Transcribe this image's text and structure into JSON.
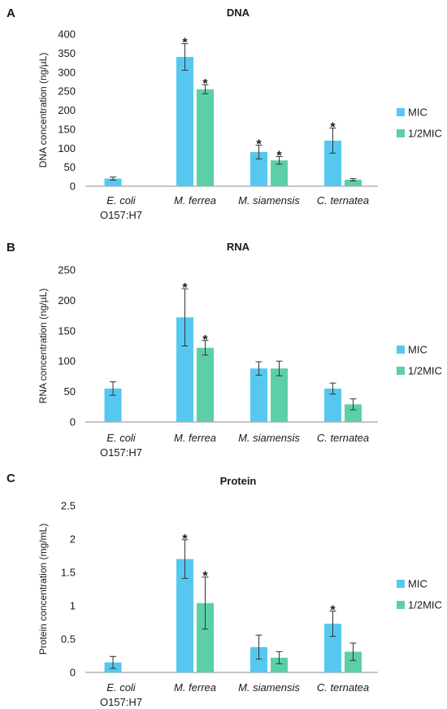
{
  "colors": {
    "mic": "#56c8f0",
    "half_mic": "#5ccfa8",
    "axis": "#8c8c8c",
    "error": "#333333",
    "text": "#1a1a1a"
  },
  "chart_data": [
    {
      "panel": "A",
      "type": "bar",
      "title": "DNA",
      "ylabel": "DNA concentration (ng/µL)",
      "xlabel": "",
      "ylim": [
        0,
        400
      ],
      "yticks": [
        "0",
        "50",
        "100",
        "150",
        "200",
        "250",
        "300",
        "350",
        "400"
      ],
      "ytick_values": [
        0,
        50,
        100,
        150,
        200,
        250,
        300,
        350,
        400
      ],
      "categories": [
        {
          "name": "E. coli",
          "sub": "O157:H7"
        },
        {
          "name": "M. ferrea",
          "sub": ""
        },
        {
          "name": "M. siamensis",
          "sub": ""
        },
        {
          "name": "C. ternatea",
          "sub": ""
        }
      ],
      "series": [
        {
          "name": "MIC",
          "values": [
            20,
            340,
            90,
            120
          ],
          "errors": [
            4,
            35,
            18,
            33
          ],
          "significant": [
            false,
            true,
            true,
            true
          ]
        },
        {
          "name": "1/2MIC",
          "values": [
            null,
            255,
            68,
            17
          ],
          "errors": [
            null,
            12,
            10,
            3
          ],
          "significant": [
            false,
            true,
            true,
            false
          ]
        }
      ],
      "significance_marker": "*",
      "legend_position": "right"
    },
    {
      "panel": "B",
      "type": "bar",
      "title": "RNA",
      "ylabel": "RNA concentration (ng/µL)",
      "xlabel": "",
      "ylim": [
        0,
        250
      ],
      "yticks": [
        "0",
        "50",
        "100",
        "150",
        "200",
        "250"
      ],
      "ytick_values": [
        0,
        50,
        100,
        150,
        200,
        250
      ],
      "categories": [
        {
          "name": "E. coli",
          "sub": "O157:H7"
        },
        {
          "name": "M. ferrea",
          "sub": ""
        },
        {
          "name": "M. siamensis",
          "sub": ""
        },
        {
          "name": "C. ternatea",
          "sub": ""
        }
      ],
      "series": [
        {
          "name": "MIC",
          "values": [
            55,
            172,
            88,
            55
          ],
          "errors": [
            11,
            47,
            11,
            9
          ],
          "significant": [
            false,
            true,
            false,
            false
          ]
        },
        {
          "name": "1/2MIC",
          "values": [
            null,
            122,
            88,
            29
          ],
          "errors": [
            null,
            12,
            12,
            9
          ],
          "significant": [
            false,
            true,
            false,
            false
          ]
        }
      ],
      "significance_marker": "*",
      "legend_position": "right"
    },
    {
      "panel": "C",
      "type": "bar",
      "title": "Protein",
      "ylabel": "Protein concentration (mg/mL)",
      "xlabel": "",
      "ylim": [
        0,
        2.5
      ],
      "yticks": [
        "0",
        "0.5",
        "1",
        "1.5",
        "2",
        "2.5"
      ],
      "ytick_values": [
        0,
        0.5,
        1,
        1.5,
        2,
        2.5
      ],
      "categories": [
        {
          "name": "E. coli",
          "sub": "O157:H7"
        },
        {
          "name": "M. ferrea",
          "sub": ""
        },
        {
          "name": "M. siamensis",
          "sub": ""
        },
        {
          "name": "C. ternatea",
          "sub": ""
        }
      ],
      "series": [
        {
          "name": "MIC",
          "values": [
            0.15,
            1.7,
            0.38,
            0.73
          ],
          "errors": [
            0.09,
            0.29,
            0.18,
            0.19
          ],
          "significant": [
            false,
            true,
            false,
            true
          ]
        },
        {
          "name": "1/2MIC",
          "values": [
            null,
            1.04,
            0.22,
            0.31
          ],
          "errors": [
            null,
            0.39,
            0.09,
            0.13
          ],
          "significant": [
            false,
            true,
            false,
            false
          ]
        }
      ],
      "significance_marker": "*",
      "legend_position": "right"
    }
  ]
}
